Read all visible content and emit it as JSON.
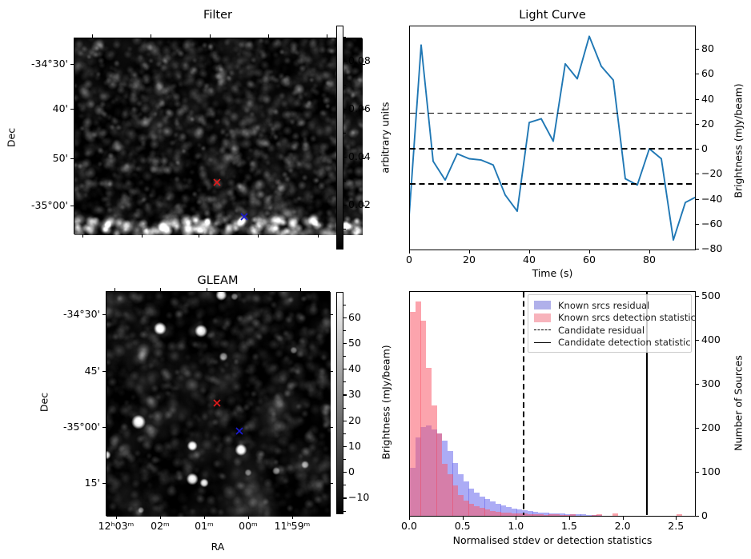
{
  "figure": {
    "background": "#ffffff"
  },
  "chart_data": [
    {
      "id": "filter",
      "type": "heatmap",
      "title": "Filter",
      "ylabel": "Dec",
      "ytick_labels": [
        "-34°30'",
        "40'",
        "50'",
        "-35°00'"
      ],
      "image_description": "grayscale noise map (matched-filter image) with a bright horizontal band near the bottom edge",
      "colorbar": {
        "label": "arbitrary units",
        "tick_labels": [
          "0.08",
          "0.06",
          "0.04",
          "0.02"
        ],
        "range_top_to_bottom": [
          0.095,
          0.0
        ],
        "top_color": "#ffffff",
        "bottom_color": "#000000"
      },
      "markers": [
        {
          "name": "candidate-x",
          "shape": "x",
          "color": "#e01b1b",
          "fx": 0.497,
          "fy": 0.736
        },
        {
          "name": "reference-x",
          "shape": "x",
          "color": "#1a1ad0",
          "fx": 0.592,
          "fy": 0.911
        }
      ]
    },
    {
      "id": "light_curve",
      "type": "line",
      "title": "Light Curve",
      "xlabel": "Time (s)",
      "ylabel": "Brightness (mJy/beam)",
      "line_color": "#1f77b4",
      "x": [
        0,
        4,
        8,
        12,
        16,
        20,
        24,
        28,
        32,
        36,
        40,
        44,
        48,
        52,
        56,
        60,
        64,
        68,
        72,
        76,
        80,
        84,
        88,
        92,
        96
      ],
      "y": [
        -54,
        83,
        -10,
        -25,
        -4,
        -8,
        -9,
        -13,
        -37,
        -50,
        21,
        24,
        6,
        68,
        56,
        90,
        66,
        55,
        -24,
        -29,
        0,
        -8,
        -73,
        -43,
        -38
      ],
      "dashed_hlines": [
        28.5,
        0,
        -28
      ],
      "xticks": [
        0,
        20,
        40,
        60,
        80
      ],
      "xtick_labels": [
        "0",
        "20",
        "40",
        "60",
        "80"
      ],
      "yticks": [
        80,
        60,
        40,
        20,
        0,
        -20,
        -40,
        -60,
        -80
      ],
      "ytick_labels": [
        "80",
        "60",
        "40",
        "20",
        "0",
        "−20",
        "−40",
        "−60",
        "−80"
      ],
      "xlim": [
        0,
        95.3
      ],
      "ylim": [
        -80.6,
        98.6
      ],
      "grid": false,
      "yaxis_side": "right"
    },
    {
      "id": "gleam",
      "type": "heatmap",
      "title": "GLEAM",
      "xlabel": "RA",
      "ylabel": "Dec",
      "xtick_labels": [
        "12ʰ03ᵐ",
        "02ᵐ",
        "01ᵐ",
        "00ᵐ",
        "11ʰ59ᵐ"
      ],
      "ytick_labels": [
        "-34°30'",
        "45'",
        "-35°00'",
        "15'"
      ],
      "image_description": "grayscale GLEAM survey cutout with bright point sources",
      "colorbar": {
        "label": "Brightness (mJy/beam)",
        "tick_labels": [
          "60",
          "50",
          "40",
          "30",
          "20",
          "10",
          "0",
          "−10"
        ],
        "top_color": "#ffffff",
        "bottom_color": "#000000"
      },
      "markers": [
        {
          "name": "candidate-x",
          "shape": "x",
          "color": "#e01b1b",
          "fx": 0.497,
          "fy": 0.498
        },
        {
          "name": "reference-x",
          "shape": "x",
          "color": "#1a1ad0",
          "fx": 0.596,
          "fy": 0.623
        }
      ],
      "sources": [
        {
          "fx": 0.239,
          "fy": 0.163,
          "r": 8,
          "b": 1.0
        },
        {
          "fx": 0.422,
          "fy": 0.174,
          "r": 8,
          "b": 1.0
        },
        {
          "fx": 0.512,
          "fy": 0.014,
          "r": 7,
          "b": 1.0
        },
        {
          "fx": 0.522,
          "fy": 0.288,
          "r": 5.5,
          "b": 0.55
        },
        {
          "fx": 0.143,
          "fy": 0.579,
          "r": 9,
          "b": 1.0
        },
        {
          "fx": 0.383,
          "fy": 0.685,
          "r": 6.5,
          "b": 1.0
        },
        {
          "fx": 0.6,
          "fy": 0.703,
          "r": 7.5,
          "b": 1.0
        },
        {
          "fx": 0.383,
          "fy": 0.833,
          "r": 7.5,
          "b": 1.0
        },
        {
          "fx": 0.436,
          "fy": 0.85,
          "r": 5.5,
          "b": 0.9
        },
        {
          "fx": 0.0,
          "fy": 0.726,
          "r": 5.5,
          "b": 0.9
        },
        {
          "fx": 0.757,
          "fy": 0.797,
          "r": 5,
          "b": 0.5
        },
        {
          "fx": 0.886,
          "fy": 0.769,
          "r": 5,
          "b": 0.55
        },
        {
          "fx": 0.632,
          "fy": 0.804,
          "r": 4.5,
          "b": 0.45
        },
        {
          "fx": 0.154,
          "fy": 0.971,
          "r": 4,
          "b": 0.5
        },
        {
          "fx": 0.571,
          "fy": 0.021,
          "r": 4.5,
          "b": 0.5
        },
        {
          "fx": 0.835,
          "fy": 0.26,
          "r": 4.5,
          "b": 0.4
        }
      ]
    },
    {
      "id": "histogram",
      "type": "histogram",
      "xlabel": "Normalised stdev or detection statistics",
      "ylabel": "Number of Sources",
      "bin_start": 0,
      "bin_width": 0.05,
      "series": [
        {
          "name": "Known srcs residual",
          "legend_color": "#b0b0ea",
          "fill": "rgba(90,90,235,0.5)",
          "values": [
            110,
            178,
            203,
            206,
            196,
            187,
            172,
            148,
            120,
            95,
            78,
            62,
            52,
            44,
            38,
            32,
            27,
            23,
            20,
            17,
            15,
            13,
            11,
            10,
            8,
            7,
            6,
            5,
            5,
            4,
            4,
            3,
            3,
            2,
            2,
            2,
            1,
            1,
            1,
            0,
            0,
            0,
            0,
            0,
            0,
            0,
            0,
            0,
            0,
            0,
            0
          ]
        },
        {
          "name": "Known srcs detection statistic",
          "legend_color": "#f7b3bb",
          "fill": "rgba(250,90,105,0.55)",
          "values": [
            465,
            488,
            445,
            336,
            251,
            187,
            118,
            95,
            70,
            48,
            35,
            28,
            22,
            18,
            14,
            11,
            9,
            8,
            7,
            6,
            5,
            5,
            4,
            4,
            3,
            2,
            4,
            3,
            2,
            2,
            3,
            1,
            1,
            1,
            2,
            3,
            1,
            1,
            5,
            1,
            0,
            0,
            0,
            0,
            0,
            0,
            0,
            0,
            0,
            0,
            4
          ]
        }
      ],
      "vlines": [
        {
          "name": "Candidate residual",
          "style": "dashed",
          "x": 1.07
        },
        {
          "name": "Candidate detection statistic",
          "style": "solid",
          "x": 2.23
        }
      ],
      "xticks": [
        0.0,
        0.5,
        1.0,
        1.5,
        2.0,
        2.5
      ],
      "xtick_labels": [
        "0.0",
        "0.5",
        "1.0",
        "1.5",
        "2.0",
        "2.5"
      ],
      "yticks": [
        0,
        100,
        200,
        300,
        400,
        500
      ],
      "ytick_labels": [
        "0",
        "100",
        "200",
        "300",
        "400",
        "500"
      ],
      "xlim": [
        0,
        2.69
      ],
      "ylim": [
        0,
        511
      ],
      "yaxis_side": "right",
      "legend": {
        "position": "upper right",
        "entries": [
          {
            "type": "patch-blue",
            "label": "Known srcs residual"
          },
          {
            "type": "patch-pink",
            "label": "Known srcs detection statistic"
          },
          {
            "type": "dashed-line",
            "label": "Candidate residual"
          },
          {
            "type": "solid-line",
            "label": "Candidate detection statistic"
          }
        ]
      }
    }
  ]
}
